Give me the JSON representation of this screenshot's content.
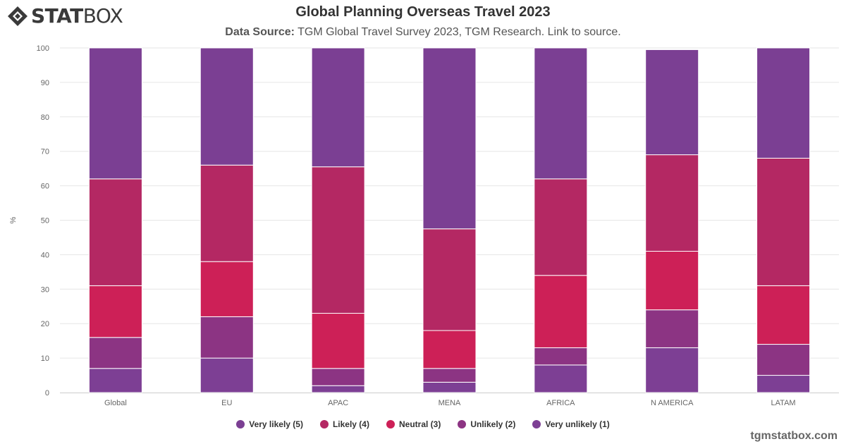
{
  "brand": {
    "part1": "STAT",
    "part2": "BOX"
  },
  "title": "Global Planning Overseas Travel 2023",
  "subtitle": {
    "label": "Data Source:",
    "text": "TGM Global Travel Survey 2023, TGM Research. Link to source."
  },
  "footer": "tgmstatbox.com",
  "chart_data": {
    "type": "bar",
    "stacked": true,
    "categories": [
      "Global",
      "EU",
      "APAC",
      "MENA",
      "AFRICA",
      "N AMERICA",
      "LATAM"
    ],
    "ylabel": "%",
    "ylim": [
      0,
      100
    ],
    "yticks": [
      0,
      10,
      20,
      30,
      40,
      50,
      60,
      70,
      80,
      90,
      100
    ],
    "grid": true,
    "legend_position": "bottom",
    "series": [
      {
        "name": "Very likely (5)",
        "color": "#7b3f93",
        "values": [
          38,
          34,
          34.5,
          52.5,
          38,
          30.5,
          32
        ]
      },
      {
        "name": "Likely (4)",
        "color": "#b42863",
        "values": [
          31,
          28,
          42.5,
          29.5,
          28,
          28,
          37
        ]
      },
      {
        "name": "Neutral (3)",
        "color": "#cd2057",
        "values": [
          15,
          16,
          16,
          11,
          21,
          17,
          17
        ]
      },
      {
        "name": "Unlikely (2)",
        "color": "#8c3483",
        "values": [
          9,
          12,
          5,
          4,
          5,
          11,
          9
        ]
      },
      {
        "name": "Very unlikely (1)",
        "color": "#7d3f94",
        "values": [
          7,
          10,
          2,
          3,
          8,
          13,
          5
        ]
      }
    ]
  }
}
